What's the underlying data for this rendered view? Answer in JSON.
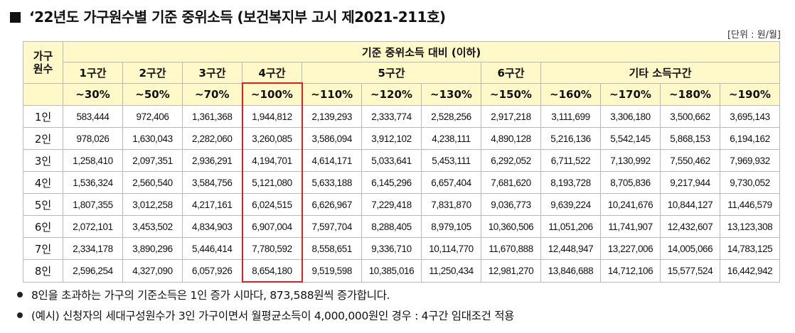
{
  "title": "‘22년도 가구원수별 기준 중위소득 (보건복지부 고시 제2021-211호)",
  "unit": "[단위 : 원/월]",
  "table": {
    "corner": "가구\n원수",
    "group_header": "기준 중위소득 대비 (이하)",
    "sections": [
      "1구간",
      "2구간",
      "3구간",
      "4구간",
      "5구간",
      "6구간",
      "기타 소득구간"
    ],
    "brackets": [
      "~30%",
      "~50%",
      "~70%",
      "~100%",
      "~110%",
      "~120%",
      "~130%",
      "~150%",
      "~160%",
      "~170%",
      "~180%",
      "~190%"
    ],
    "highlighted_bracket": "~100%",
    "highlight_color": "#e02020",
    "header_color": "#fff8c8",
    "rows": [
      {
        "label": "1인",
        "values": [
          "583,444",
          "972,406",
          "1,361,368",
          "1,944,812",
          "2,139,293",
          "2,333,774",
          "2,528,256",
          "2,917,218",
          "3,111,699",
          "3,306,180",
          "3,500,662",
          "3,695,143"
        ]
      },
      {
        "label": "2인",
        "values": [
          "978,026",
          "1,630,043",
          "2,282,060",
          "3,260,085",
          "3,586,094",
          "3,912,102",
          "4,238,111",
          "4,890,128",
          "5,216,136",
          "5,542,145",
          "5,868,153",
          "6,194,162"
        ]
      },
      {
        "label": "3인",
        "values": [
          "1,258,410",
          "2,097,351",
          "2,936,291",
          "4,194,701",
          "4,614,171",
          "5,033,641",
          "5,453,111",
          "6,292,052",
          "6,711,522",
          "7,130,992",
          "7,550,462",
          "7,969,932"
        ]
      },
      {
        "label": "4인",
        "values": [
          "1,536,324",
          "2,560,540",
          "3,584,756",
          "5,121,080",
          "5,633,188",
          "6,145,296",
          "6,657,404",
          "7,681,620",
          "8,193,728",
          "8,705,836",
          "9,217,944",
          "9,730,052"
        ]
      },
      {
        "label": "5인",
        "values": [
          "1,807,355",
          "3,012,258",
          "4,217,161",
          "6,024,515",
          "6,626,967",
          "7,229,418",
          "7,831,870",
          "9,036,773",
          "9,639,224",
          "10,241,676",
          "10,844,127",
          "11,446,579"
        ]
      },
      {
        "label": "6인",
        "values": [
          "2,072,101",
          "3,453,502",
          "4,834,903",
          "6,907,004",
          "7,597,704",
          "8,288,405",
          "8,979,105",
          "10,360,506",
          "11,051,206",
          "11,741,907",
          "12,432,607",
          "13,123,308"
        ]
      },
      {
        "label": "7인",
        "values": [
          "2,334,178",
          "3,890,296",
          "5,446,414",
          "7,780,592",
          "8,558,651",
          "9,336,710",
          "10,114,770",
          "11,670,888",
          "12,448,947",
          "13,227,006",
          "14,005,066",
          "14,783,125"
        ]
      },
      {
        "label": "8인",
        "values": [
          "2,596,254",
          "4,327,090",
          "6,057,926",
          "8,654,180",
          "9,519,598",
          "10,385,016",
          "11,250,434",
          "12,981,270",
          "13,846,688",
          "14,712,106",
          "15,577,524",
          "16,442,942"
        ]
      }
    ]
  },
  "notes": [
    "8인을 초과하는 가구의 기준소득은 1인 증가 시마다, 873,588원씩 증가합니다.",
    "(예시) 신청자의 세대구성원수가 3인 가구이면서 월평균소득이 4,000,000원인 경우 : 4구간 임대조건 적용"
  ]
}
